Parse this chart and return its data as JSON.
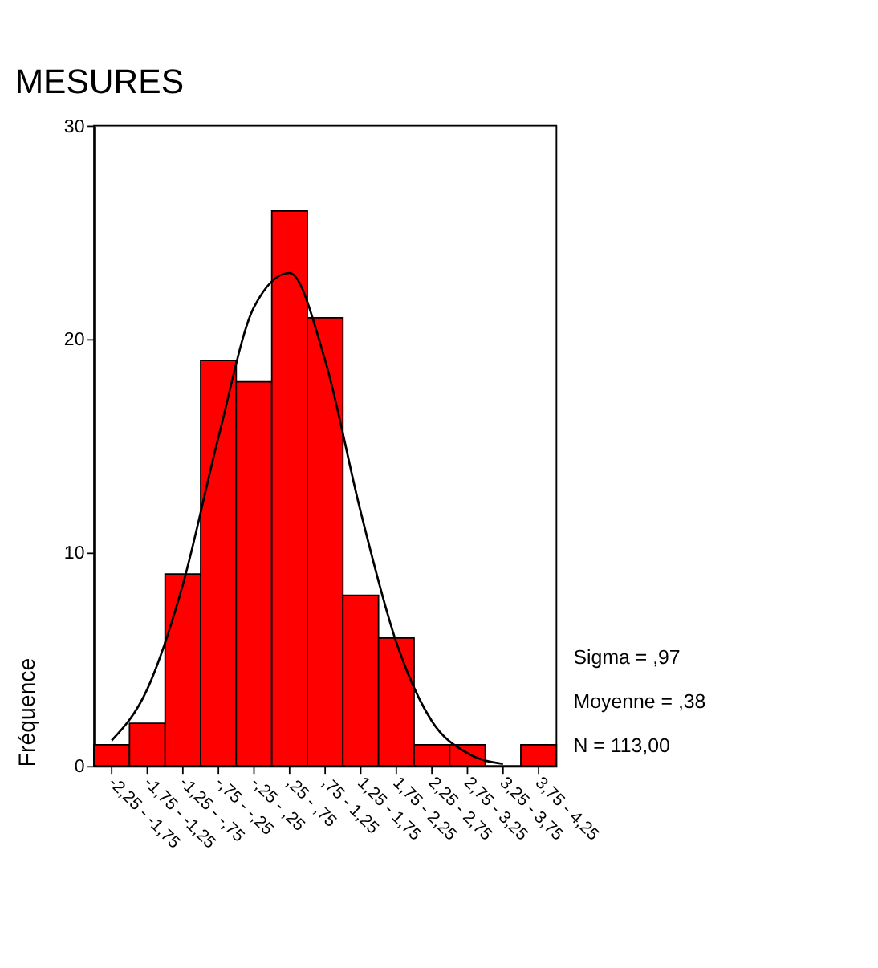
{
  "chart_data": {
    "type": "bar",
    "title": "MESURES",
    "ylabel": "Fréquence",
    "categories": [
      "-2,25 - -1,75",
      "-1,75 - -1,25",
      "-1,25 - -,75",
      "-,75 - -,25",
      "-,25 - ,25",
      ",25 - ,75",
      ",75 - 1,25",
      "1,25 - 1,75",
      "1,75 - 2,25",
      "2,25 - 2,75",
      "2,75 - 3,25",
      "3,25 - 3,75",
      "3,75 - 4,25"
    ],
    "series": [
      {
        "color": "#ff0000",
        "values": [
          1,
          2,
          9,
          19,
          18,
          26,
          21,
          8,
          6,
          1,
          1,
          0,
          1
        ]
      },
      {
        "type": "line",
        "color": "#000000",
        "values": [
          1.2,
          3.6,
          8.5,
          15.4,
          21.5,
          23.1,
          19.0,
          11.9,
          5.8,
          2.1,
          0.6,
          0.1,
          null
        ]
      }
    ],
    "ylim": [
      0,
      30
    ],
    "yticks": [
      0,
      10,
      20,
      30
    ],
    "grid": false,
    "annotations": [
      "Sigma = ,97",
      "Moyenne = ,38",
      "N = 113,00"
    ]
  }
}
